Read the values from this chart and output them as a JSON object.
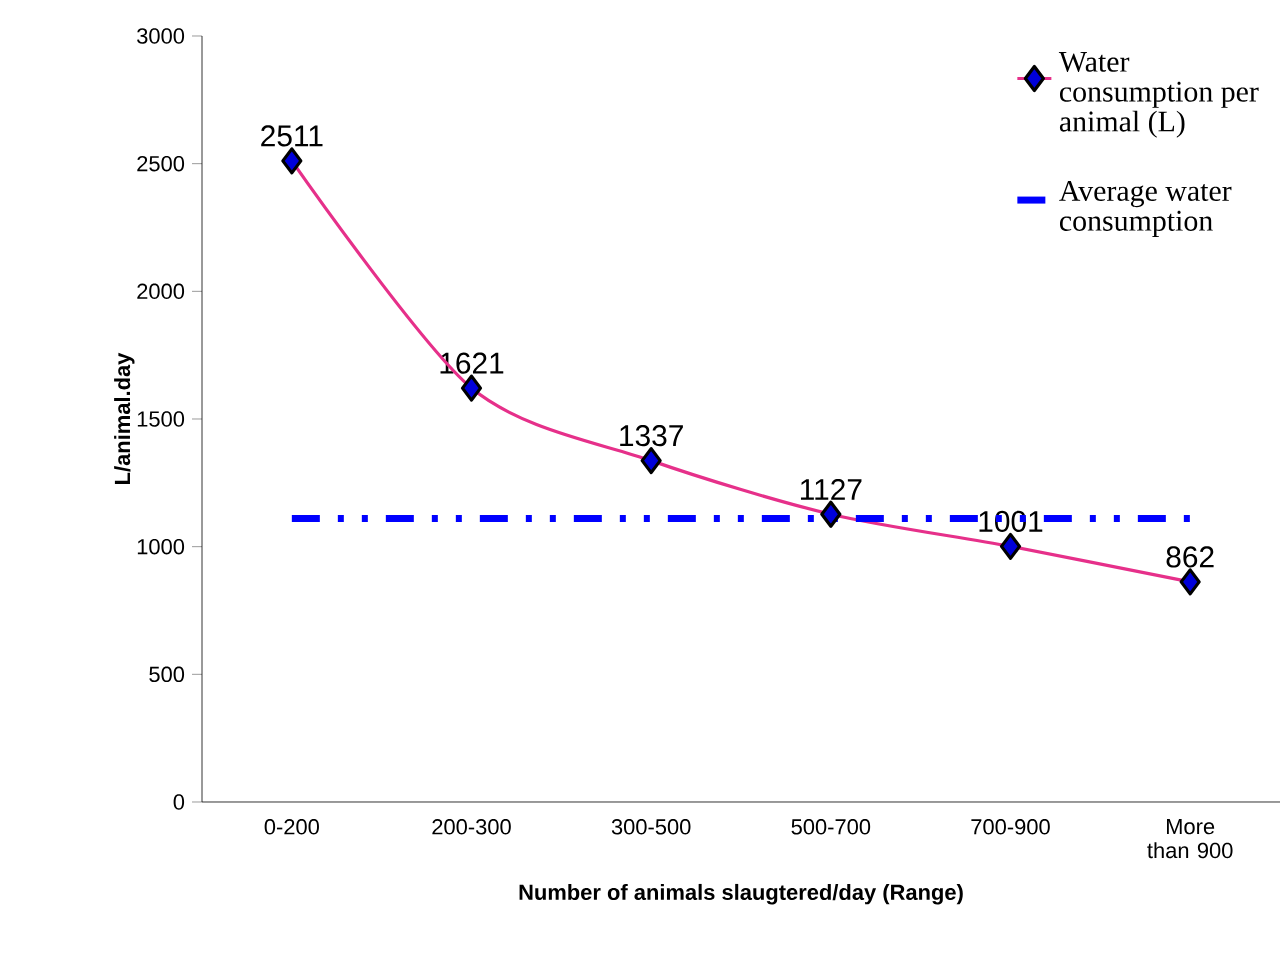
{
  "chart_data": {
    "type": "line",
    "xlabel": "Number of animals slaugtered/day (Range)",
    "ylabel": "L/animal.day",
    "categories": [
      "0-200",
      "200-300",
      "300-500",
      "500-700",
      "700-900",
      "More than 900"
    ],
    "series": [
      {
        "name": "Water consumption per animal (L)",
        "color": "#e6308a",
        "values": [
          2511,
          1621,
          1337,
          1127,
          1001,
          862
        ],
        "marker": "diamond",
        "line_style": "solid",
        "data_labels": true
      },
      {
        "name": "Average water consumption",
        "color": "#0000ff",
        "values": [
          1110,
          1110,
          1110,
          1110,
          1110,
          1110
        ],
        "marker": "none",
        "line_style": "dashed"
      }
    ],
    "ylim": [
      0,
      3000
    ],
    "yticks": [
      0,
      500,
      1000,
      1500,
      2000,
      2500,
      3000
    ],
    "grid": false,
    "legend": "top right"
  }
}
